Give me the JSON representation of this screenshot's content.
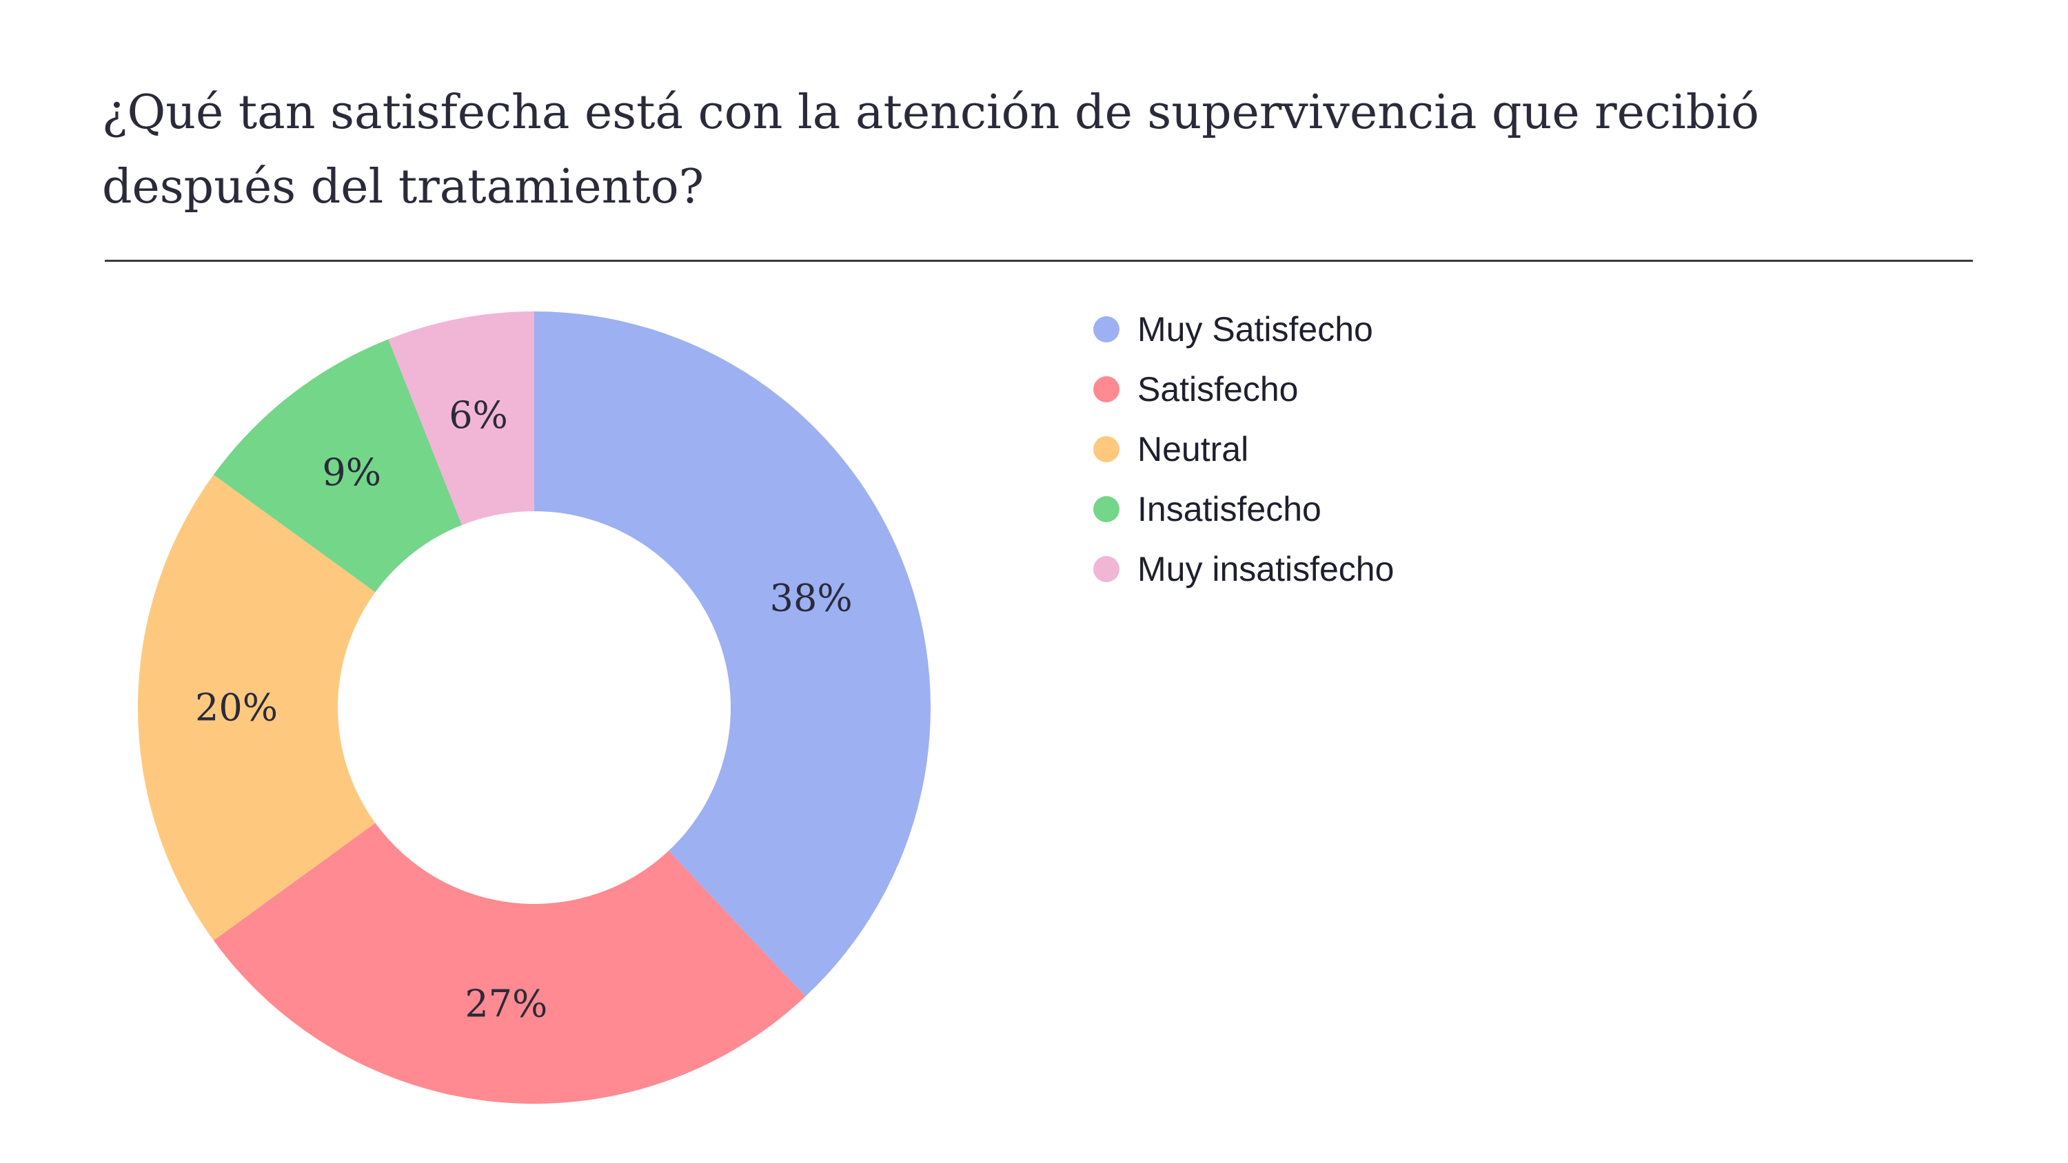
{
  "chart_data": {
    "type": "pie",
    "subtype": "donut",
    "title": "¿Qué tan satisfecha está con la atención de supervivencia que recibió después del tratamiento?",
    "categories": [
      "Muy Satisfecho",
      "Satisfecho",
      "Neutral",
      "Insatisfecho",
      "Muy insatisfecho"
    ],
    "values": [
      38,
      27,
      20,
      9,
      6
    ],
    "labels": [
      "38%",
      "27%",
      "20%",
      "9%",
      "6%"
    ],
    "colors": [
      "#9db0f2",
      "#ff8a91",
      "#fec97e",
      "#74d689",
      "#f1b5d6"
    ],
    "legend_position": "right",
    "start_angle": "top",
    "direction": "clockwise"
  }
}
